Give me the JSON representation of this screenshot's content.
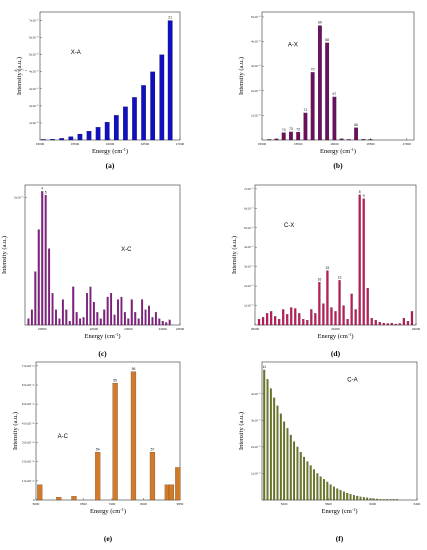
{
  "chart_data": [
    {
      "type": "bar",
      "panel": "(a)",
      "annotation": "X-A",
      "xlabel": "Energy (cm",
      "xlabel_sup": "-1",
      "xlabel_close": ")",
      "ylabel": "Intensity (a.u.)",
      "xlim": [
        15000,
        17000
      ],
      "ylim": [
        0,
        7.5
      ],
      "ytick_labels": [
        "1x10⁻⁸",
        "2x10⁻⁸",
        "3x10⁻⁸",
        "4x10⁻⁸",
        "5x10⁻⁸",
        "6x10⁻⁸",
        "7x10⁻⁸"
      ],
      "xtick_labels": [
        {
          "v": 15000,
          "t": "15000"
        },
        {
          "v": 15500,
          "t": "15500"
        },
        {
          "v": 16000,
          "t": "16000"
        },
        {
          "v": 16500,
          "t": "16500"
        },
        {
          "v": 17000,
          "t": "17000"
        }
      ],
      "color": "#1010c0",
      "x": [
        15050,
        15180,
        15310,
        15440,
        15570,
        15700,
        15830,
        15960,
        16090,
        16220,
        16350,
        16480,
        16610,
        16740,
        16860
      ],
      "values": [
        0.03,
        0.05,
        0.1,
        0.2,
        0.35,
        0.52,
        0.75,
        1.05,
        1.45,
        1.95,
        2.5,
        3.2,
        4.0,
        5.0,
        7.0
      ],
      "data_labels": [
        {
          "i": 14,
          "t": "21"
        }
      ]
    },
    {
      "type": "bar",
      "panel": "(b)",
      "annotation": "A-X",
      "xlabel": "Energy (cm",
      "xlabel_sup": "-1",
      "xlabel_close": ")",
      "ylabel": "Intensity (a.u.)",
      "xlim": [
        15000,
        17100
      ],
      "ylim": [
        0,
        5.2
      ],
      "ytick_labels": [
        "1x10⁻⁸",
        "2x10⁻⁸",
        "3x10⁻⁸",
        "4x10⁻⁸",
        "5x10⁻⁸"
      ],
      "xtick_labels": [
        {
          "v": 15000,
          "t": "15000"
        },
        {
          "v": 15500,
          "t": "15500"
        },
        {
          "v": 16000,
          "t": "16000"
        },
        {
          "v": 16500,
          "t": "16500"
        },
        {
          "v": 17000,
          "t": "17000"
        }
      ],
      "color": "#6b0f5e",
      "x": [
        15100,
        15200,
        15300,
        15400,
        15500,
        15600,
        15700,
        15800,
        15900,
        16000,
        16100,
        16200,
        16300,
        16400,
        16500
      ],
      "values": [
        0.02,
        0.05,
        0.3,
        0.33,
        0.32,
        1.1,
        2.75,
        4.65,
        3.95,
        1.75,
        0.05,
        0.02,
        0.5,
        0.03,
        0.02
      ],
      "data_labels": [
        {
          "i": 2,
          "t": "74"
        },
        {
          "i": 3,
          "t": "73"
        },
        {
          "i": 4,
          "t": "72"
        },
        {
          "i": 5,
          "t": "71"
        },
        {
          "i": 6,
          "t": "70"
        },
        {
          "i": 7,
          "t": "69"
        },
        {
          "i": 8,
          "t": "68"
        },
        {
          "i": 9,
          "t": "67"
        },
        {
          "i": 12,
          "t": "66"
        }
      ]
    },
    {
      "type": "bar",
      "panel": "(c)",
      "annotation": "X-C",
      "xlabel": "Energy (cm",
      "xlabel_sup": "-1",
      "xlabel_close": ")",
      "ylabel": "Intensity (a.u.)",
      "xlim": [
        20000,
        24500
      ],
      "ylim": [
        0,
        1.1
      ],
      "ytick_labels": [
        "2x10⁻⁹",
        "4x10⁻⁹",
        "6x10⁻⁹",
        "8x10⁻⁹",
        "1x10⁻⁸"
      ],
      "xtick_labels": [
        {
          "v": 20500,
          "t": "20500"
        },
        {
          "v": 22000,
          "t": "22000"
        },
        {
          "v": 23000,
          "t": "23000"
        },
        {
          "v": 24000,
          "t": "24000"
        },
        {
          "v": 24500,
          "t": "24500"
        }
      ],
      "color": "#8a1a8a",
      "x": [
        20100,
        20200,
        20300,
        20400,
        20500,
        20600,
        20700,
        20800,
        20900,
        21000,
        21100,
        21200,
        21300,
        21400,
        21500,
        21600,
        21700,
        21800,
        21900,
        22000,
        22100,
        22200,
        22300,
        22400,
        22500,
        22600,
        22700,
        22800,
        22900,
        23000,
        23100,
        23200,
        23300,
        23400,
        23500,
        23600,
        23700,
        23800,
        23900,
        24000,
        24100,
        24200
      ],
      "values": [
        0.05,
        0.12,
        0.42,
        0.75,
        1.05,
        1.02,
        0.6,
        0.25,
        0.12,
        0.05,
        0.2,
        0.12,
        0.03,
        0.3,
        0.1,
        0.05,
        0.06,
        0.25,
        0.3,
        0.18,
        0.1,
        0.05,
        0.12,
        0.22,
        0.25,
        0.08,
        0.2,
        0.22,
        0.1,
        0.05,
        0.2,
        0.1,
        0.05,
        0.2,
        0.12,
        0.15,
        0.06,
        0.1,
        0.05,
        0.03,
        0.02,
        0.04
      ],
      "data_labels": [
        {
          "i": 4,
          "t": "4"
        },
        {
          "i": 5,
          "t": "5"
        }
      ]
    },
    {
      "type": "bar",
      "panel": "(d)",
      "annotation": "C-X",
      "xlabel": "Energy (cm",
      "xlabel_sup": "-1",
      "xlabel_close": ")",
      "ylabel": "Intensity (a.u.)",
      "xlim": [
        20000,
        22000
      ],
      "ylim": [
        0,
        7.2
      ],
      "ytick_labels": [
        "1x10⁻⁹",
        "2x10⁻⁹",
        "3x10⁻⁹",
        "4x10⁻⁹",
        "5x10⁻⁹",
        "6x10⁻⁹",
        "7x10⁻⁹"
      ],
      "xtick_labels": [
        {
          "v": 20000,
          "t": "20000"
        },
        {
          "v": 21000,
          "t": "21000"
        },
        {
          "v": 22000,
          "t": "22000"
        }
      ],
      "color": "#c4185a",
      "x": [
        20050,
        20100,
        20150,
        20200,
        20250,
        20300,
        20350,
        20400,
        20450,
        20500,
        20550,
        20600,
        20650,
        20700,
        20750,
        20800,
        20850,
        20900,
        20950,
        21000,
        21050,
        21100,
        21150,
        21200,
        21250,
        21300,
        21350,
        21400,
        21450,
        21500,
        21550,
        21600,
        21650,
        21700,
        21750,
        21800,
        21850,
        21900,
        21950
      ],
      "values": [
        0.3,
        0.4,
        0.6,
        0.7,
        0.45,
        0.3,
        0.8,
        0.55,
        0.9,
        0.85,
        0.6,
        0.3,
        0.25,
        0.8,
        0.6,
        2.2,
        1.1,
        2.8,
        0.9,
        0.7,
        2.3,
        1.0,
        0.3,
        1.6,
        0.8,
        6.7,
        6.5,
        1.9,
        0.35,
        0.25,
        0.15,
        0.1,
        0.08,
        0.1,
        0.05,
        0.08,
        0.35,
        0.2,
        0.7
      ],
      "data_labels": [
        {
          "i": 15,
          "t": "16"
        },
        {
          "i": 17,
          "t": "15"
        },
        {
          "i": 20,
          "t": "13"
        },
        {
          "i": 25,
          "t": "8"
        },
        {
          "i": 26,
          "t": "9"
        }
      ]
    },
    {
      "type": "bar",
      "panel": "(e)",
      "annotation": "A-C",
      "xlabel": "Energy (cm",
      "xlabel_sup": "-1",
      "xlabel_close": ")",
      "ylabel": "Intensity (a.u.)",
      "xlim": [
        5000,
        9550
      ],
      "ylim": [
        0,
        7.2
      ],
      "ytick_labels": [
        "0",
        "1.0x10⁻¹¹",
        "2.0x10⁻¹¹",
        "3.0x10⁻¹¹",
        "4.0x10⁻¹¹",
        "5.0x10⁻¹¹",
        "6.0x10⁻¹¹",
        "7.0x10⁻¹¹"
      ],
      "ytick_start_zero": true,
      "xtick_labels": [
        {
          "v": 5000,
          "t": "5000"
        },
        {
          "v": 6500,
          "t": "6500"
        },
        {
          "v": 7400,
          "t": "7400"
        },
        {
          "v": 8400,
          "t": "8400"
        },
        {
          "v": 9550,
          "t": "9550"
        }
      ],
      "color": "#d07a2a",
      "x": [
        5120,
        5720,
        6200,
        6950,
        7500,
        8080,
        8680,
        9150,
        9280,
        9480
      ],
      "values": [
        0.8,
        0.15,
        0.2,
        2.5,
        6.1,
        6.7,
        2.5,
        0.8,
        0.8,
        1.7
      ],
      "data_labels": [
        {
          "i": 3,
          "t": "54"
        },
        {
          "i": 4,
          "t": "55"
        },
        {
          "i": 5,
          "t": "56"
        },
        {
          "i": 6,
          "t": "57"
        }
      ]
    },
    {
      "type": "bar",
      "panel": "(f)",
      "annotation": "C-A",
      "xlabel": "Energy (cm",
      "xlabel_sup": "-1",
      "xlabel_close": ")",
      "ylabel": "Intensity (a.u.)",
      "xlim": [
        5000,
        6400
      ],
      "ylim": [
        0,
        5.2
      ],
      "ytick_labels": [
        "1x10⁻⁹",
        "2x10⁻⁹",
        "3x10⁻⁹",
        "4x10⁻⁹"
      ],
      "xtick_labels": [
        {
          "v": 5200,
          "t": "5200"
        },
        {
          "v": 5600,
          "t": "5600"
        },
        {
          "v": 6000,
          "t": "6000"
        },
        {
          "v": 6400,
          "t": "6400"
        }
      ],
      "color": "#6b7a1a",
      "x": [
        5020,
        5050,
        5080,
        5110,
        5140,
        5170,
        5200,
        5230,
        5260,
        5290,
        5320,
        5350,
        5380,
        5410,
        5440,
        5470,
        5500,
        5530,
        5560,
        5590,
        5620,
        5650,
        5680,
        5710,
        5740,
        5770,
        5800,
        5830,
        5860,
        5890,
        5920,
        5950,
        5980,
        6010,
        6040,
        6070,
        6100,
        6130,
        6160,
        6190,
        6220
      ],
      "values": [
        4.9,
        4.55,
        4.2,
        3.85,
        3.55,
        3.25,
        2.95,
        2.7,
        2.45,
        2.2,
        2.0,
        1.8,
        1.62,
        1.45,
        1.3,
        1.15,
        1.0,
        0.88,
        0.78,
        0.68,
        0.58,
        0.5,
        0.43,
        0.37,
        0.31,
        0.26,
        0.22,
        0.18,
        0.15,
        0.12,
        0.1,
        0.08,
        0.06,
        0.05,
        0.04,
        0.03,
        0.025,
        0.02,
        0.015,
        0.01,
        0.008
      ],
      "data_labels": [
        {
          "i": 0,
          "t": "11"
        }
      ]
    }
  ]
}
